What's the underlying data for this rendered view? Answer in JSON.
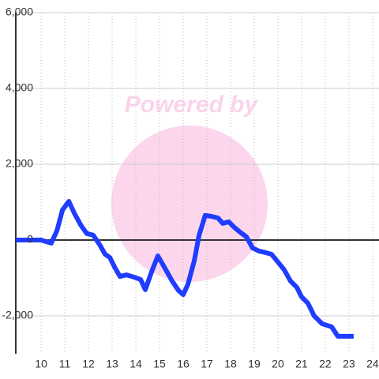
{
  "chart_data": {
    "type": "line",
    "watermark": "Powered by",
    "x": [
      8.93,
      10,
      10.2,
      10.43,
      10.67,
      10.9,
      11.17,
      11.4,
      11.67,
      11.93,
      12.2,
      12.47,
      12.7,
      12.9,
      13.1,
      13.33,
      13.6,
      13.83,
      14.2,
      14.4,
      14.67,
      14.93,
      15.2,
      15.53,
      15.8,
      16,
      16.2,
      16.47,
      16.67,
      16.93,
      17.2,
      17.47,
      17.67,
      17.93,
      18.13,
      18.4,
      18.67,
      18.93,
      19.2,
      19.47,
      19.73,
      20,
      20.27,
      20.53,
      20.8,
      21,
      21.27,
      21.53,
      21.87,
      22.27,
      22.53,
      22.93,
      23.2
    ],
    "series": [
      {
        "color": "#1f3cff",
        "values": [
          0,
          0,
          -40,
          -80,
          250,
          790,
          1020,
          710,
          400,
          170,
          130,
          -120,
          -375,
          -460,
          -710,
          -960,
          -920,
          -960,
          -1040,
          -1310,
          -830,
          -420,
          -710,
          -1080,
          -1330,
          -1440,
          -1170,
          -540,
          125,
          650,
          625,
          580,
          440,
          480,
          350,
          210,
          85,
          -210,
          -290,
          -330,
          -375,
          -580,
          -790,
          -1080,
          -1250,
          -1500,
          -1670,
          -2000,
          -2210,
          -2290,
          -2540,
          -2540,
          -2540
        ]
      }
    ],
    "xlim": [
      8.93,
      24.27
    ],
    "xticks": [
      10,
      11,
      12,
      13,
      14,
      15,
      16,
      17,
      18,
      19,
      20,
      21,
      22,
      23,
      24
    ],
    "ylim": [
      -3000,
      6000
    ],
    "yticks": [
      {
        "value": 6000,
        "label": "6,000"
      },
      {
        "value": 4000,
        "label": "4,000"
      },
      {
        "value": 2000,
        "label": "2,000"
      },
      0,
      {
        "value": -2000,
        "label": "-2,000"
      }
    ],
    "grid": true
  }
}
